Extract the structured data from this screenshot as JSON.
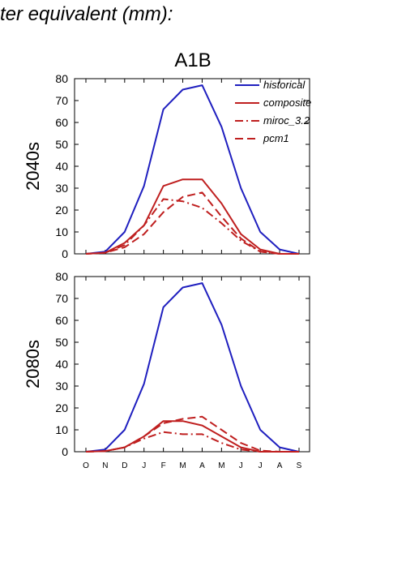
{
  "header_text": "ter equivalent (mm):",
  "chart_data": {
    "type": "line",
    "title": "A1B",
    "ylim": [
      0,
      80
    ],
    "yticks": [
      0,
      10,
      20,
      30,
      40,
      50,
      60,
      70,
      80
    ],
    "categories": [
      "O",
      "N",
      "D",
      "J",
      "F",
      "M",
      "A",
      "M",
      "J",
      "J",
      "A",
      "S"
    ],
    "legend_position": "top-right",
    "panels": [
      {
        "label": "2040s",
        "series": [
          {
            "name": "historical",
            "color": "#1f1fbf",
            "dash": "solid",
            "values": [
              0,
              1,
              10,
              31,
              66,
              75,
              77,
              58,
              30,
              10,
              2,
              0
            ]
          },
          {
            "name": "composite",
            "color": "#bf1f1f",
            "dash": "solid",
            "values": [
              0,
              0.5,
              5,
              13,
              31,
              34,
              34,
              23,
              9,
              2,
              0,
              0
            ]
          },
          {
            "name": "miroc_3.2",
            "color": "#bf1f1f",
            "dash": "dashdot",
            "values": [
              0,
              0.5,
              4,
              13,
              25,
              24,
              21,
              14,
              6,
              1,
              0,
              0
            ]
          },
          {
            "name": "pcm1",
            "color": "#bf1f1f",
            "dash": "dash",
            "values": [
              0,
              0.5,
              3,
              9,
              19,
              26,
              28,
              17,
              7,
              1,
              0,
              0
            ]
          }
        ]
      },
      {
        "label": "2080s",
        "series": [
          {
            "name": "historical",
            "color": "#1f1fbf",
            "dash": "solid",
            "values": [
              0,
              1,
              10,
              31,
              66,
              75,
              77,
              58,
              30,
              10,
              2,
              0
            ]
          },
          {
            "name": "composite",
            "color": "#bf1f1f",
            "dash": "solid",
            "values": [
              0,
              0.3,
              2,
              7,
              14,
              14,
              12,
              7,
              2,
              0,
              0,
              0
            ]
          },
          {
            "name": "miroc_3.2",
            "color": "#bf1f1f",
            "dash": "dashdot",
            "values": [
              0,
              0.3,
              2,
              6,
              9,
              8,
              8,
              4,
              1,
              0,
              0,
              0
            ]
          },
          {
            "name": "pcm1",
            "color": "#bf1f1f",
            "dash": "dash",
            "values": [
              0,
              0.3,
              2,
              7,
              13,
              15,
              16,
              10,
              4,
              0.5,
              0,
              0
            ]
          }
        ]
      }
    ]
  }
}
